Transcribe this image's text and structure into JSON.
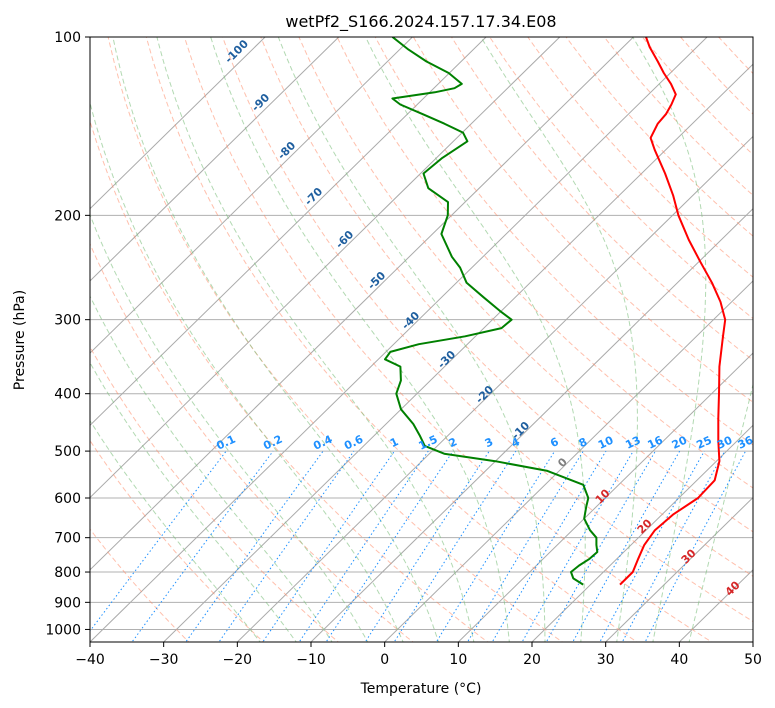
{
  "chart_data": {
    "type": "skew-t",
    "title": "wetPf2_S166.2024.157.17.34.E08",
    "xlabel": "Temperature (°C)",
    "ylabel": "Pressure (hPa)",
    "xlim": [
      -40,
      50
    ],
    "ylim": [
      1050,
      100
    ],
    "y_scale": "log",
    "x_ticks": [
      "−40",
      "−30",
      "−20",
      "−10",
      "0",
      "10",
      "20",
      "30",
      "40",
      "50"
    ],
    "y_ticks": [
      {
        "p": 100,
        "label": "100"
      },
      {
        "p": 200,
        "label": "200"
      },
      {
        "p": 300,
        "label": "300"
      },
      {
        "p": 400,
        "label": "400"
      },
      {
        "p": 500,
        "label": "500"
      },
      {
        "p": 600,
        "label": "600"
      },
      {
        "p": 700,
        "label": "700"
      },
      {
        "p": 800,
        "label": "800"
      },
      {
        "p": 900,
        "label": "900"
      },
      {
        "p": 1000,
        "label": "1000"
      }
    ],
    "grid": true,
    "skew_isotherms_deg_c": [
      -100,
      -90,
      -80,
      -70,
      -60,
      -50,
      -40,
      -30,
      -20,
      -10,
      0,
      10,
      20,
      30,
      40,
      50
    ],
    "isotherm_labels": [
      {
        "t": -100,
        "text": "-100"
      },
      {
        "t": -90,
        "text": "-90"
      },
      {
        "t": -80,
        "text": "-80"
      },
      {
        "t": -70,
        "text": "-70"
      },
      {
        "t": -60,
        "text": "-60"
      },
      {
        "t": -50,
        "text": "-50"
      },
      {
        "t": -40,
        "text": "-40"
      },
      {
        "t": -30,
        "text": "-30"
      },
      {
        "t": -20,
        "text": "-20"
      },
      {
        "t": -10,
        "text": "-10"
      }
    ],
    "isotherm_labels_low": [
      {
        "t": 0,
        "text": "0"
      },
      {
        "t": 10,
        "text": "10"
      },
      {
        "t": 20,
        "text": "20"
      },
      {
        "t": 30,
        "text": "30"
      },
      {
        "t": 40,
        "text": "40"
      }
    ],
    "mixing_ratio_labels": [
      "0.1",
      "0.2",
      "0.4",
      "0.6",
      "1",
      "1.5",
      "2",
      "3",
      "4",
      "6",
      "8",
      "10",
      "13",
      "16",
      "20",
      "25",
      "30",
      "36"
    ],
    "mixing_ratio_values": [
      0.1,
      0.2,
      0.4,
      0.6,
      1,
      1.5,
      2,
      3,
      4,
      6,
      8,
      10,
      13,
      16,
      20,
      25,
      30,
      36
    ],
    "colors": {
      "temperature": "#ff0000",
      "dewpoint": "#008000",
      "isotherm": "#aaaaaa",
      "dry_adiabat": "#ff8c69",
      "moist_adiabat": "#7fbf7f",
      "mixing_ratio": "#1e90ff",
      "isotherm_label": "#1f5f9f",
      "low_isotherm_label": "#d62728"
    },
    "series": [
      {
        "name": "",
        "kind": "temperature",
        "points": [
          {
            "p": 840,
            "t": 24.0
          },
          {
            "p": 800,
            "t": 24.0
          },
          {
            "p": 760,
            "t": 22.9
          },
          {
            "p": 720,
            "t": 21.8
          },
          {
            "p": 680,
            "t": 21.2
          },
          {
            "p": 640,
            "t": 21.5
          },
          {
            "p": 600,
            "t": 22.6
          },
          {
            "p": 560,
            "t": 22.4
          },
          {
            "p": 520,
            "t": 20.4
          },
          {
            "p": 480,
            "t": 17.4
          },
          {
            "p": 440,
            "t": 14.3
          },
          {
            "p": 400,
            "t": 11.0
          },
          {
            "p": 360,
            "t": 7.3
          },
          {
            "p": 320,
            "t": 3.6
          },
          {
            "p": 300,
            "t": 1.6
          },
          {
            "p": 280,
            "t": -1.5
          },
          {
            "p": 260,
            "t": -5.3
          },
          {
            "p": 240,
            "t": -9.7
          },
          {
            "p": 220,
            "t": -14.4
          },
          {
            "p": 200,
            "t": -19.2
          },
          {
            "p": 185,
            "t": -22.7
          },
          {
            "p": 170,
            "t": -26.8
          },
          {
            "p": 155,
            "t": -31.5
          },
          {
            "p": 148,
            "t": -33.7
          },
          {
            "p": 140,
            "t": -34.7
          },
          {
            "p": 135,
            "t": -34.9
          },
          {
            "p": 130,
            "t": -35.5
          },
          {
            "p": 125,
            "t": -36.3
          },
          {
            "p": 120,
            "t": -38.4
          },
          {
            "p": 115,
            "t": -40.9
          },
          {
            "p": 110,
            "t": -43.3
          },
          {
            "p": 104,
            "t": -46.4
          },
          {
            "p": 100,
            "t": -48.3
          }
        ]
      },
      {
        "name": "",
        "kind": "dewpoint",
        "points": [
          {
            "p": 840,
            "t": 19.0
          },
          {
            "p": 820,
            "t": 16.8
          },
          {
            "p": 800,
            "t": 15.6
          },
          {
            "p": 780,
            "t": 15.8
          },
          {
            "p": 760,
            "t": 16.3
          },
          {
            "p": 740,
            "t": 16.4
          },
          {
            "p": 720,
            "t": 15.3
          },
          {
            "p": 700,
            "t": 14.3
          },
          {
            "p": 680,
            "t": 12.4
          },
          {
            "p": 650,
            "t": 10.0
          },
          {
            "p": 620,
            "t": 8.6
          },
          {
            "p": 600,
            "t": 7.7
          },
          {
            "p": 570,
            "t": 5.2
          },
          {
            "p": 540,
            "t": -1.6
          },
          {
            "p": 520,
            "t": -10.0
          },
          {
            "p": 505,
            "t": -18.0
          },
          {
            "p": 490,
            "t": -21.7
          },
          {
            "p": 470,
            "t": -23.9
          },
          {
            "p": 450,
            "t": -26.3
          },
          {
            "p": 425,
            "t": -30.0
          },
          {
            "p": 400,
            "t": -32.8
          },
          {
            "p": 380,
            "t": -34.0
          },
          {
            "p": 360,
            "t": -36.0
          },
          {
            "p": 350,
            "t": -39.1
          },
          {
            "p": 340,
            "t": -39.4
          },
          {
            "p": 330,
            "t": -36.6
          },
          {
            "p": 320,
            "t": -31.4
          },
          {
            "p": 310,
            "t": -27.6
          },
          {
            "p": 300,
            "t": -27.4
          },
          {
            "p": 290,
            "t": -30.2
          },
          {
            "p": 275,
            "t": -34.3
          },
          {
            "p": 260,
            "t": -38.6
          },
          {
            "p": 245,
            "t": -41.6
          },
          {
            "p": 235,
            "t": -44.2
          },
          {
            "p": 215,
            "t": -48.8
          },
          {
            "p": 200,
            "t": -50.5
          },
          {
            "p": 190,
            "t": -52.3
          },
          {
            "p": 180,
            "t": -56.9
          },
          {
            "p": 170,
            "t": -59.6
          },
          {
            "p": 160,
            "t": -59.2
          },
          {
            "p": 150,
            "t": -58.1
          },
          {
            "p": 145,
            "t": -59.9
          },
          {
            "p": 140,
            "t": -63.7
          },
          {
            "p": 135,
            "t": -67.9
          },
          {
            "p": 130,
            "t": -72.3
          },
          {
            "p": 127,
            "t": -74.2
          },
          {
            "p": 124,
            "t": -69.3
          },
          {
            "p": 122,
            "t": -67.2
          },
          {
            "p": 120,
            "t": -66.8
          },
          {
            "p": 115,
            "t": -70.1
          },
          {
            "p": 110,
            "t": -74.7
          },
          {
            "p": 105,
            "t": -78.8
          },
          {
            "p": 100,
            "t": -82.7
          }
        ]
      }
    ]
  }
}
